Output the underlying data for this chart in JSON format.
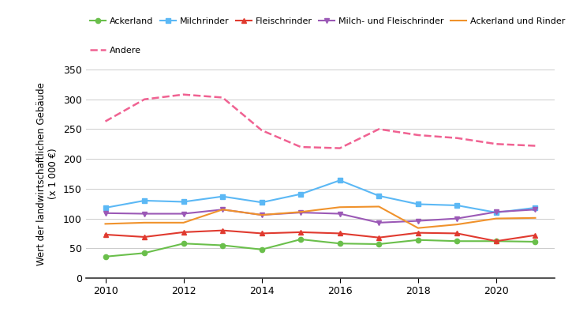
{
  "ylabel": "Wert der landwirtschaftlichen Gebäude\n(x 1 000 €)",
  "years": [
    2010,
    2011,
    2012,
    2013,
    2014,
    2015,
    2016,
    2017,
    2018,
    2019,
    2020,
    2021
  ],
  "series": [
    {
      "name": "Ackerland",
      "values": [
        36,
        42,
        58,
        55,
        48,
        65,
        58,
        57,
        64,
        62,
        62,
        61
      ],
      "color": "#6abf4b",
      "marker": "o",
      "linestyle": "-",
      "linewidth": 1.5
    },
    {
      "name": "Milchrinder",
      "values": [
        118,
        130,
        128,
        137,
        127,
        141,
        164,
        138,
        124,
        122,
        110,
        118
      ],
      "color": "#5bb8f5",
      "marker": "s",
      "linestyle": "-",
      "linewidth": 1.5
    },
    {
      "name": "Fleischrinder",
      "values": [
        73,
        69,
        77,
        80,
        75,
        77,
        75,
        68,
        76,
        75,
        62,
        72
      ],
      "color": "#e03a2f",
      "marker": "^",
      "linestyle": "-",
      "linewidth": 1.5
    },
    {
      "name": "Milch- und Fleischrinder",
      "values": [
        109,
        108,
        108,
        115,
        106,
        110,
        108,
        93,
        96,
        100,
        111,
        115
      ],
      "color": "#9b59b6",
      "marker": "v",
      "linestyle": "-",
      "linewidth": 1.5
    },
    {
      "name": "Ackerland und Rinder",
      "values": [
        91,
        93,
        93,
        115,
        106,
        111,
        119,
        120,
        84,
        90,
        100,
        101
      ],
      "color": "#f0922b",
      "marker": "None",
      "linestyle": "-",
      "linewidth": 1.5
    },
    {
      "name": "Andere",
      "values": [
        263,
        300,
        308,
        303,
        248,
        220,
        218,
        250,
        240,
        235,
        225,
        222
      ],
      "color": "#f06292",
      "marker": "None",
      "linestyle": "--",
      "linewidth": 1.8
    }
  ],
  "ylim": [
    0,
    350
  ],
  "yticks": [
    0,
    50,
    100,
    150,
    200,
    250,
    300,
    350
  ],
  "xticks": [
    2010,
    2012,
    2014,
    2016,
    2018,
    2020
  ],
  "xlim": [
    2009.5,
    2021.5
  ],
  "background_color": "#ffffff",
  "grid_color": "#cccccc"
}
